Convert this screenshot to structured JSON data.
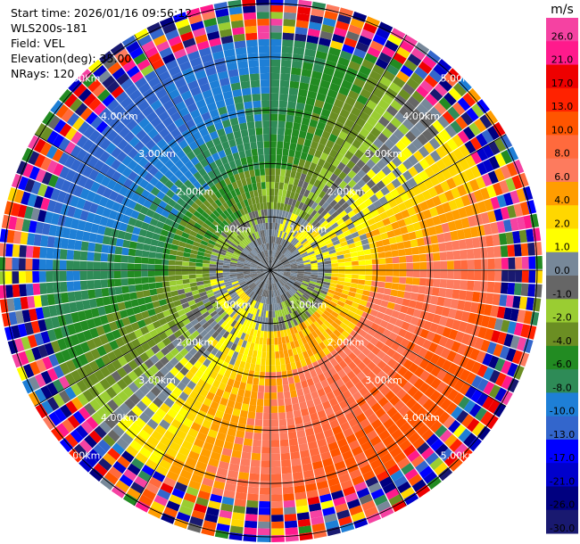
{
  "header": {
    "start_time": "Start time: 2026/01/16 09:56:12",
    "instrument": "WLS200s-181",
    "field": "Field: VEL",
    "elevation": "Elevation(deg): 35.00",
    "nrays": "NRays: 120"
  },
  "chart_data": {
    "type": "heatmap",
    "subtype": "polar-ppi",
    "field": "VEL",
    "units": "m/s",
    "n_rays": 120,
    "range_rings_km": [
      1,
      2,
      3,
      4,
      5
    ],
    "range_labels": [
      "1.00km",
      "2.00km",
      "3.00km",
      "4.00km",
      "5.00km"
    ],
    "max_range_km": 5.1,
    "grid": true,
    "colorbar": {
      "label": "m/s",
      "ticks": [
        "26.0",
        "21.0",
        "17.0",
        "13.0",
        "10.0",
        "8.0",
        "6.0",
        "4.0",
        "2.0",
        "1.0",
        "0.0",
        "-1.0",
        "-2.0",
        "-4.0",
        "-6.0",
        "-8.0",
        "-10.0",
        "-13.0",
        "-17.0",
        "-21.0",
        "-26.0",
        "-30.0"
      ],
      "bins": [
        {
          "min": 26,
          "max": 30,
          "color": "#f542a2"
        },
        {
          "min": 21,
          "max": 26,
          "color": "#ff1a8c"
        },
        {
          "min": 17,
          "max": 21,
          "color": "#ee0000"
        },
        {
          "min": 13,
          "max": 17,
          "color": "#ff2200"
        },
        {
          "min": 10,
          "max": 13,
          "color": "#ff5500"
        },
        {
          "min": 8,
          "max": 10,
          "color": "#ff6a3d"
        },
        {
          "min": 6,
          "max": 8,
          "color": "#fd7b5e"
        },
        {
          "min": 4,
          "max": 6,
          "color": "#ff9d00"
        },
        {
          "min": 2,
          "max": 4,
          "color": "#ffd700"
        },
        {
          "min": 1,
          "max": 2,
          "color": "#ffff00"
        },
        {
          "min": 0,
          "max": 1,
          "color": "#778899"
        },
        {
          "min": -1,
          "max": 0,
          "color": "#666666"
        },
        {
          "min": -2,
          "max": -1,
          "color": "#9acd32"
        },
        {
          "min": -4,
          "max": -2,
          "color": "#6b8e23"
        },
        {
          "min": -6,
          "max": -4,
          "color": "#228b22"
        },
        {
          "min": -8,
          "max": -6,
          "color": "#2e8b57"
        },
        {
          "min": -10,
          "max": -8,
          "color": "#1e7fd6"
        },
        {
          "min": -13,
          "max": -10,
          "color": "#3366cc"
        },
        {
          "min": -17,
          "max": -13,
          "color": "#0000ff"
        },
        {
          "min": -21,
          "max": -17,
          "color": "#0000cc"
        },
        {
          "min": -26,
          "max": -21,
          "color": "#000080"
        },
        {
          "min": -30,
          "max": -26,
          "color": "#191970"
        }
      ]
    },
    "pattern_description": "Near-center gray/green and yellow zones; receding (positive, warm colors) to the east and south; approaching (negative, blue/green colors) to the north and west; noisy multicolor beyond ~4.3 km",
    "sectors": [
      {
        "azimuth_deg_from": 300,
        "azimuth_deg_to": 360,
        "value_beyond_2km_ms": -14
      },
      {
        "azimuth_deg_from": 0,
        "azimuth_deg_to": 40,
        "value_beyond_2km_ms": -7
      },
      {
        "azimuth_deg_from": 40,
        "azimuth_deg_to": 90,
        "value_beyond_2km_ms": 8
      },
      {
        "azimuth_deg_from": 90,
        "azimuth_deg_to": 180,
        "value_beyond_2km_ms": 12
      },
      {
        "azimuth_deg_from": 180,
        "azimuth_deg_to": 230,
        "value_beyond_2km_ms": 3
      },
      {
        "azimuth_deg_from": 230,
        "azimuth_deg_to": 300,
        "value_beyond_2km_ms": -3
      }
    ],
    "noise_range_km": 4.3
  }
}
